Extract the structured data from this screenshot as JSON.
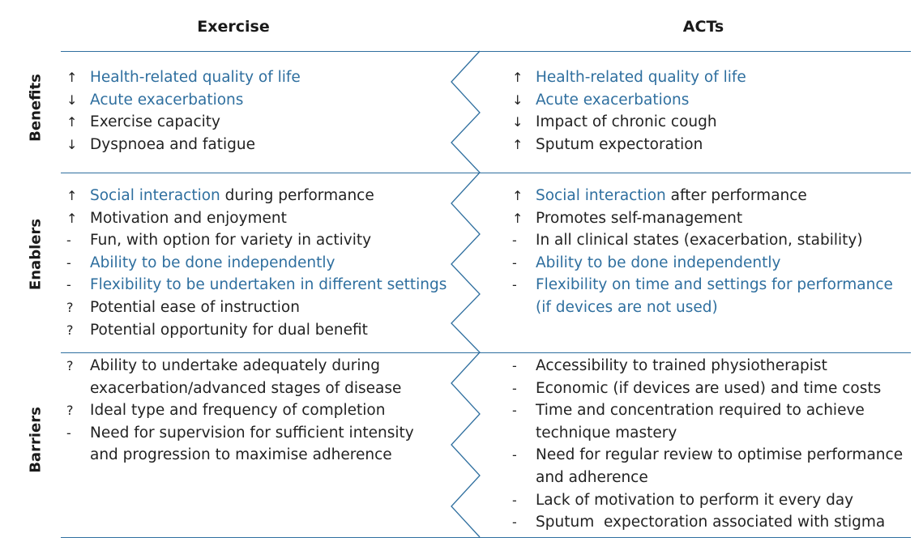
{
  "headers": {
    "exercise": "Exercise",
    "acts": "ACTs"
  },
  "colors": {
    "highlight": "#2f6f9f",
    "text": "#222222",
    "rule": "#2f6f9f"
  },
  "rows": {
    "benefits": {
      "label": "Benefits",
      "exercise": [
        {
          "marker": "↑",
          "highlight": "Health-related quality of life",
          "text": ""
        },
        {
          "marker": "↓",
          "highlight": "Acute exacerbations",
          "text": ""
        },
        {
          "marker": "↑",
          "highlight": "",
          "text": "Exercise capacity"
        },
        {
          "marker": "↓",
          "highlight": "",
          "text": "Dyspnoea and fatigue"
        }
      ],
      "acts": [
        {
          "marker": "↑",
          "highlight": "Health-related quality of life",
          "text": ""
        },
        {
          "marker": "↓",
          "highlight": "Acute exacerbations",
          "text": ""
        },
        {
          "marker": "↓",
          "highlight": "",
          "text": "Impact of chronic cough"
        },
        {
          "marker": "↑",
          "highlight": "",
          "text": "Sputum expectoration"
        }
      ]
    },
    "enablers": {
      "label": "Enablers",
      "exercise": [
        {
          "marker": "↑",
          "highlight": "Social interaction",
          "text": " during performance"
        },
        {
          "marker": "↑",
          "highlight": "",
          "text": "Motivation and enjoyment"
        },
        {
          "marker": "-",
          "highlight": "",
          "text": "Fun, with option for variety in activity"
        },
        {
          "marker": "-",
          "highlight": "Ability to be done independently",
          "text": ""
        },
        {
          "marker": "-",
          "highlight": "Flexibility to be undertaken in different settings",
          "text": ""
        },
        {
          "marker": "?",
          "highlight": "",
          "text": "Potential ease of instruction"
        },
        {
          "marker": "?",
          "highlight": "",
          "text": "Potential opportunity for dual benefit"
        }
      ],
      "acts": [
        {
          "marker": "↑",
          "highlight": "Social interaction",
          "text": " after performance"
        },
        {
          "marker": "↑",
          "highlight": "",
          "text": "Promotes self-management"
        },
        {
          "marker": "-",
          "highlight": "",
          "text": "In all clinical states (exacerbation, stability)"
        },
        {
          "marker": "-",
          "highlight": "Ability to be done independently",
          "text": ""
        },
        {
          "marker": "-",
          "highlight": "Flexibility on time and settings for performance",
          "text": ""
        },
        {
          "marker": "",
          "highlight": "(if devices are not used)",
          "text": ""
        }
      ]
    },
    "barriers": {
      "label": "Barriers",
      "exercise": [
        {
          "marker": "?",
          "highlight": "",
          "text": "Ability to undertake adequately during"
        },
        {
          "marker": "",
          "highlight": "",
          "text": "exacerbation/advanced stages of disease"
        },
        {
          "marker": "?",
          "highlight": "",
          "text": "Ideal type and frequency of completion"
        },
        {
          "marker": "-",
          "highlight": "",
          "text": "Need for supervision for sufficient intensity"
        },
        {
          "marker": "",
          "highlight": "",
          "text": "and progression to maximise adherence"
        }
      ],
      "acts": [
        {
          "marker": "-",
          "highlight": "",
          "text": "Accessibility to trained physiotherapist"
        },
        {
          "marker": "-",
          "highlight": "",
          "text": "Economic (if devices are used) and time costs"
        },
        {
          "marker": "-",
          "highlight": "",
          "text": "Time and concentration required to achieve"
        },
        {
          "marker": "",
          "highlight": "",
          "text": "technique mastery"
        },
        {
          "marker": "-",
          "highlight": "",
          "text": "Need for regular review to optimise performance"
        },
        {
          "marker": "",
          "highlight": "",
          "text": "and adherence"
        },
        {
          "marker": "-",
          "highlight": "",
          "text": "Lack of motivation to perform it every day"
        },
        {
          "marker": "-",
          "highlight": "",
          "text": "Sputum  expectoration associated with stigma"
        }
      ]
    }
  }
}
